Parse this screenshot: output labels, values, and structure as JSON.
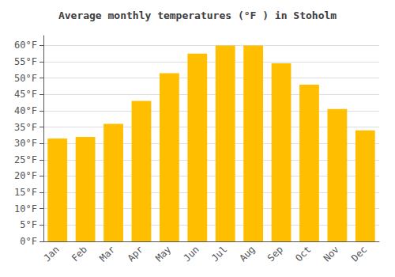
{
  "chart_data": {
    "type": "bar",
    "title": "Average monthly temperatures (°F ) in Stoholm",
    "categories": [
      "Jan",
      "Feb",
      "Mar",
      "Apr",
      "May",
      "Jun",
      "Jul",
      "Aug",
      "Sep",
      "Oct",
      "Nov",
      "Dec"
    ],
    "values": [
      31.5,
      32,
      36,
      43,
      51.5,
      57.5,
      60,
      60,
      54.5,
      48,
      40.5,
      34
    ],
    "color": "#FFBE00",
    "ylim": [
      0,
      63
    ],
    "yticks": [
      {
        "value": 0,
        "label": "0°F"
      },
      {
        "value": 5,
        "label": "5°F"
      },
      {
        "value": 10,
        "label": "10°F"
      },
      {
        "value": 15,
        "label": "15°F"
      },
      {
        "value": 20,
        "label": "20°F"
      },
      {
        "value": 25,
        "label": "25°F"
      },
      {
        "value": 30,
        "label": "30°F"
      },
      {
        "value": 35,
        "label": "35°F"
      },
      {
        "value": 40,
        "label": "40°F"
      },
      {
        "value": 45,
        "label": "45°F"
      },
      {
        "value": 50,
        "label": "50°F"
      },
      {
        "value": 55,
        "label": "55°F"
      },
      {
        "value": 60,
        "label": "60°F"
      }
    ],
    "grid": true
  }
}
